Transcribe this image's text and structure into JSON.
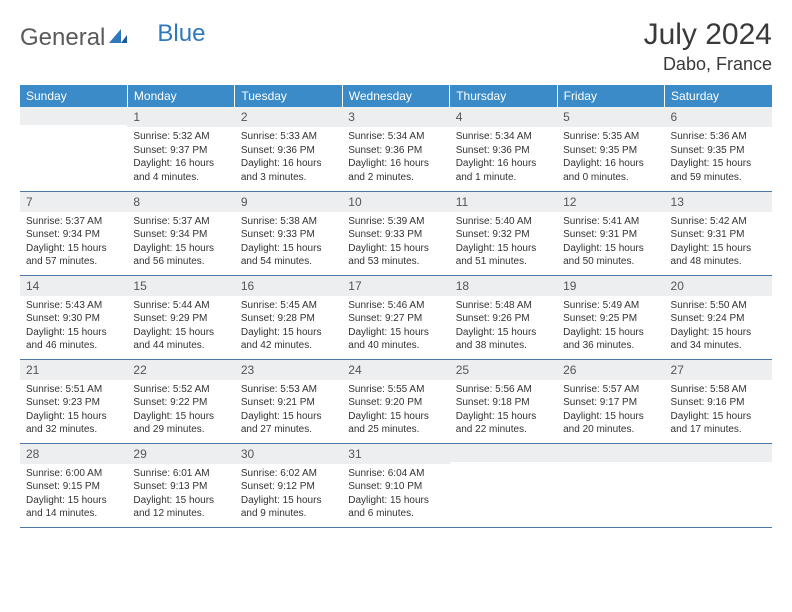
{
  "logo": {
    "part1": "General",
    "part2": "Blue"
  },
  "title": "July 2024",
  "location": "Dabo, France",
  "header_bg": "#3b8bc9",
  "border_color": "#5078a8",
  "weekdays": [
    "Sunday",
    "Monday",
    "Tuesday",
    "Wednesday",
    "Thursday",
    "Friday",
    "Saturday"
  ],
  "weeks": [
    [
      {
        "num": "",
        "lines": []
      },
      {
        "num": "1",
        "lines": [
          "Sunrise: 5:32 AM",
          "Sunset: 9:37 PM",
          "Daylight: 16 hours",
          "and 4 minutes."
        ]
      },
      {
        "num": "2",
        "lines": [
          "Sunrise: 5:33 AM",
          "Sunset: 9:36 PM",
          "Daylight: 16 hours",
          "and 3 minutes."
        ]
      },
      {
        "num": "3",
        "lines": [
          "Sunrise: 5:34 AM",
          "Sunset: 9:36 PM",
          "Daylight: 16 hours",
          "and 2 minutes."
        ]
      },
      {
        "num": "4",
        "lines": [
          "Sunrise: 5:34 AM",
          "Sunset: 9:36 PM",
          "Daylight: 16 hours",
          "and 1 minute."
        ]
      },
      {
        "num": "5",
        "lines": [
          "Sunrise: 5:35 AM",
          "Sunset: 9:35 PM",
          "Daylight: 16 hours",
          "and 0 minutes."
        ]
      },
      {
        "num": "6",
        "lines": [
          "Sunrise: 5:36 AM",
          "Sunset: 9:35 PM",
          "Daylight: 15 hours",
          "and 59 minutes."
        ]
      }
    ],
    [
      {
        "num": "7",
        "lines": [
          "Sunrise: 5:37 AM",
          "Sunset: 9:34 PM",
          "Daylight: 15 hours",
          "and 57 minutes."
        ]
      },
      {
        "num": "8",
        "lines": [
          "Sunrise: 5:37 AM",
          "Sunset: 9:34 PM",
          "Daylight: 15 hours",
          "and 56 minutes."
        ]
      },
      {
        "num": "9",
        "lines": [
          "Sunrise: 5:38 AM",
          "Sunset: 9:33 PM",
          "Daylight: 15 hours",
          "and 54 minutes."
        ]
      },
      {
        "num": "10",
        "lines": [
          "Sunrise: 5:39 AM",
          "Sunset: 9:33 PM",
          "Daylight: 15 hours",
          "and 53 minutes."
        ]
      },
      {
        "num": "11",
        "lines": [
          "Sunrise: 5:40 AM",
          "Sunset: 9:32 PM",
          "Daylight: 15 hours",
          "and 51 minutes."
        ]
      },
      {
        "num": "12",
        "lines": [
          "Sunrise: 5:41 AM",
          "Sunset: 9:31 PM",
          "Daylight: 15 hours",
          "and 50 minutes."
        ]
      },
      {
        "num": "13",
        "lines": [
          "Sunrise: 5:42 AM",
          "Sunset: 9:31 PM",
          "Daylight: 15 hours",
          "and 48 minutes."
        ]
      }
    ],
    [
      {
        "num": "14",
        "lines": [
          "Sunrise: 5:43 AM",
          "Sunset: 9:30 PM",
          "Daylight: 15 hours",
          "and 46 minutes."
        ]
      },
      {
        "num": "15",
        "lines": [
          "Sunrise: 5:44 AM",
          "Sunset: 9:29 PM",
          "Daylight: 15 hours",
          "and 44 minutes."
        ]
      },
      {
        "num": "16",
        "lines": [
          "Sunrise: 5:45 AM",
          "Sunset: 9:28 PM",
          "Daylight: 15 hours",
          "and 42 minutes."
        ]
      },
      {
        "num": "17",
        "lines": [
          "Sunrise: 5:46 AM",
          "Sunset: 9:27 PM",
          "Daylight: 15 hours",
          "and 40 minutes."
        ]
      },
      {
        "num": "18",
        "lines": [
          "Sunrise: 5:48 AM",
          "Sunset: 9:26 PM",
          "Daylight: 15 hours",
          "and 38 minutes."
        ]
      },
      {
        "num": "19",
        "lines": [
          "Sunrise: 5:49 AM",
          "Sunset: 9:25 PM",
          "Daylight: 15 hours",
          "and 36 minutes."
        ]
      },
      {
        "num": "20",
        "lines": [
          "Sunrise: 5:50 AM",
          "Sunset: 9:24 PM",
          "Daylight: 15 hours",
          "and 34 minutes."
        ]
      }
    ],
    [
      {
        "num": "21",
        "lines": [
          "Sunrise: 5:51 AM",
          "Sunset: 9:23 PM",
          "Daylight: 15 hours",
          "and 32 minutes."
        ]
      },
      {
        "num": "22",
        "lines": [
          "Sunrise: 5:52 AM",
          "Sunset: 9:22 PM",
          "Daylight: 15 hours",
          "and 29 minutes."
        ]
      },
      {
        "num": "23",
        "lines": [
          "Sunrise: 5:53 AM",
          "Sunset: 9:21 PM",
          "Daylight: 15 hours",
          "and 27 minutes."
        ]
      },
      {
        "num": "24",
        "lines": [
          "Sunrise: 5:55 AM",
          "Sunset: 9:20 PM",
          "Daylight: 15 hours",
          "and 25 minutes."
        ]
      },
      {
        "num": "25",
        "lines": [
          "Sunrise: 5:56 AM",
          "Sunset: 9:18 PM",
          "Daylight: 15 hours",
          "and 22 minutes."
        ]
      },
      {
        "num": "26",
        "lines": [
          "Sunrise: 5:57 AM",
          "Sunset: 9:17 PM",
          "Daylight: 15 hours",
          "and 20 minutes."
        ]
      },
      {
        "num": "27",
        "lines": [
          "Sunrise: 5:58 AM",
          "Sunset: 9:16 PM",
          "Daylight: 15 hours",
          "and 17 minutes."
        ]
      }
    ],
    [
      {
        "num": "28",
        "lines": [
          "Sunrise: 6:00 AM",
          "Sunset: 9:15 PM",
          "Daylight: 15 hours",
          "and 14 minutes."
        ]
      },
      {
        "num": "29",
        "lines": [
          "Sunrise: 6:01 AM",
          "Sunset: 9:13 PM",
          "Daylight: 15 hours",
          "and 12 minutes."
        ]
      },
      {
        "num": "30",
        "lines": [
          "Sunrise: 6:02 AM",
          "Sunset: 9:12 PM",
          "Daylight: 15 hours",
          "and 9 minutes."
        ]
      },
      {
        "num": "31",
        "lines": [
          "Sunrise: 6:04 AM",
          "Sunset: 9:10 PM",
          "Daylight: 15 hours",
          "and 6 minutes."
        ]
      },
      {
        "num": "",
        "lines": []
      },
      {
        "num": "",
        "lines": []
      },
      {
        "num": "",
        "lines": []
      }
    ]
  ]
}
